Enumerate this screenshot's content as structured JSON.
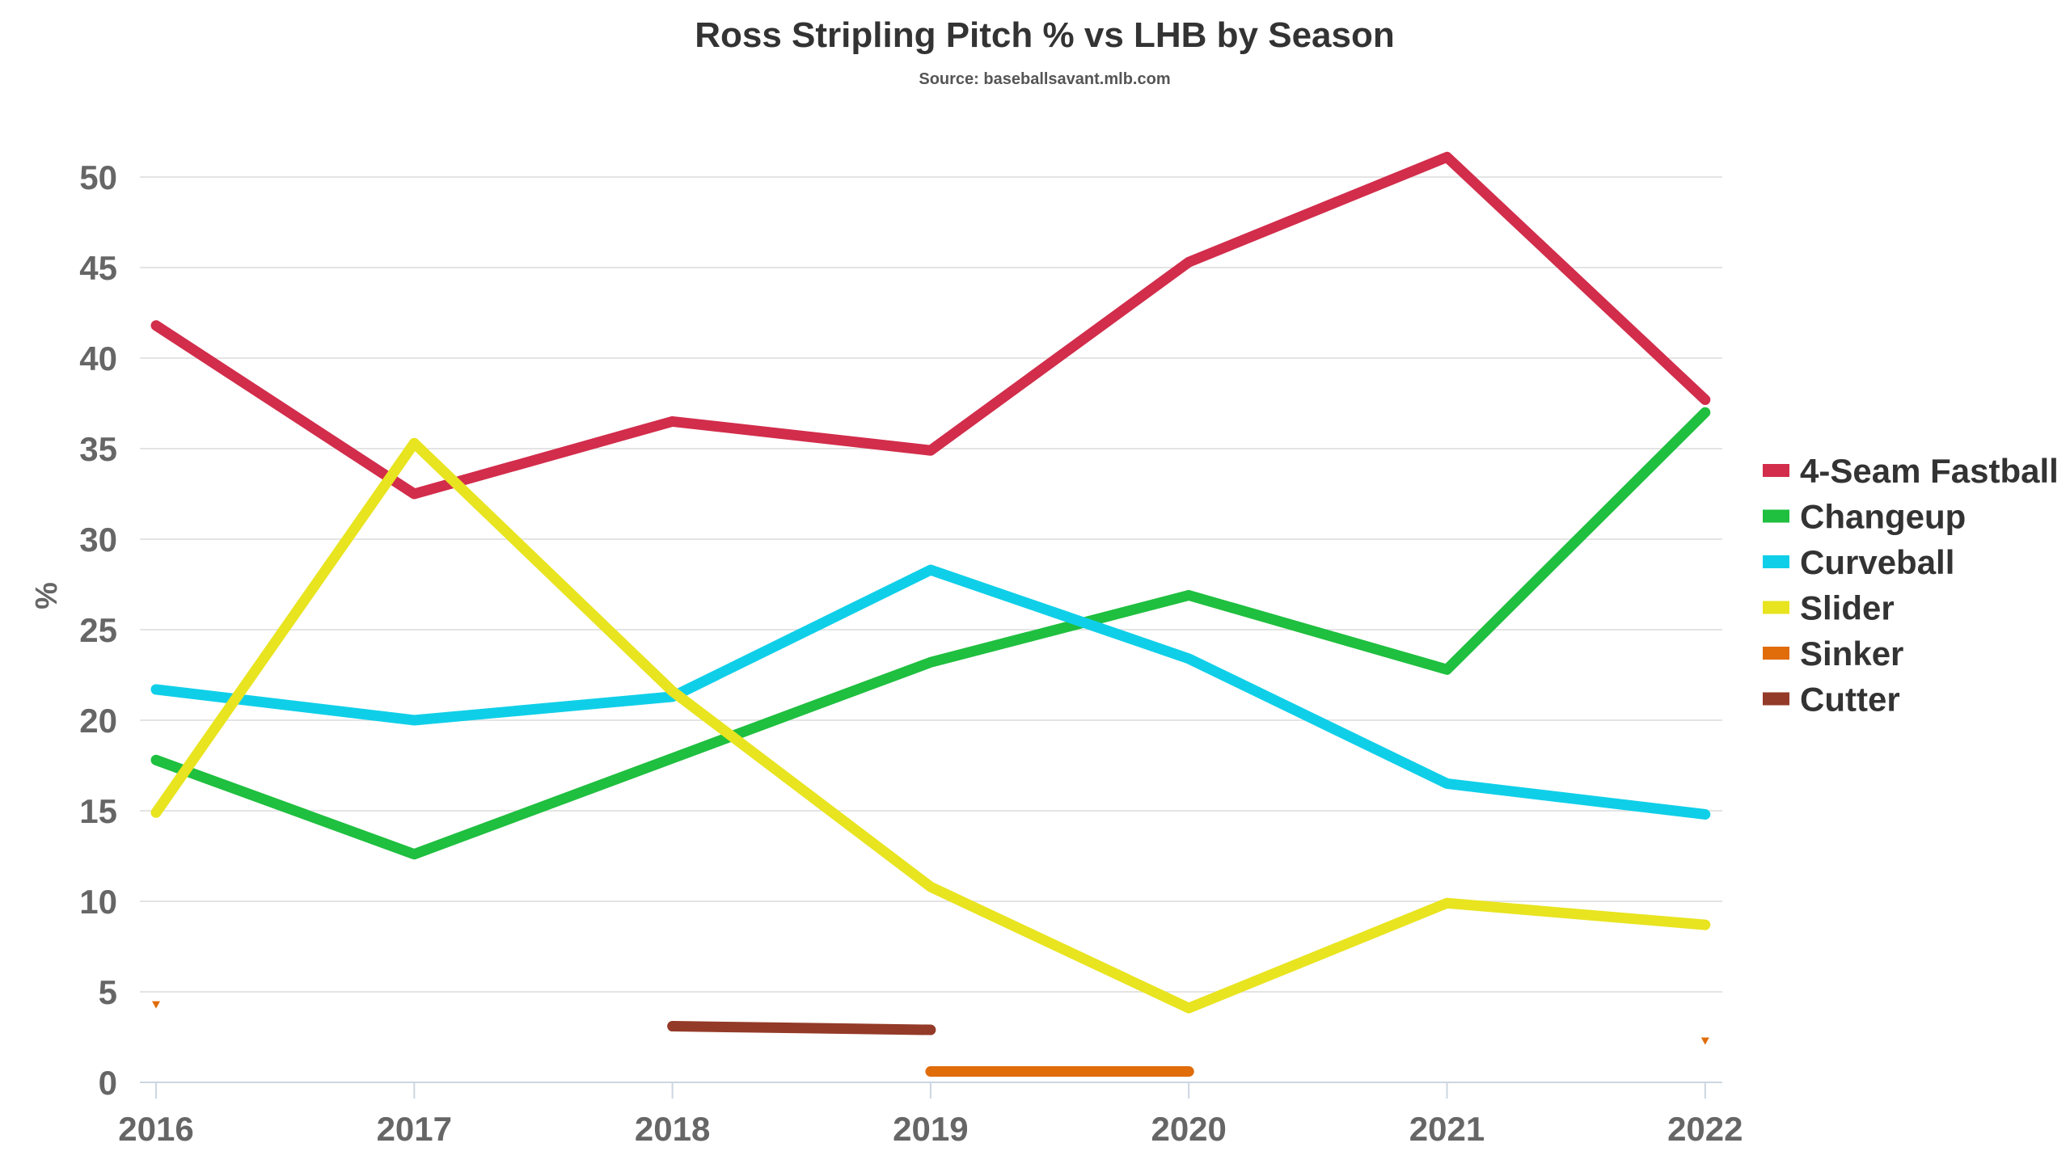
{
  "chart_data": {
    "type": "line",
    "title": "Ross Stripling Pitch % vs LHB by Season",
    "subtitle": "Source: baseballsavant.mlb.com",
    "xlabel": "",
    "ylabel": "%",
    "x": [
      "2016",
      "2017",
      "2018",
      "2019",
      "2020",
      "2021",
      "2022"
    ],
    "ylim": [
      0,
      52
    ],
    "yticks": [
      "0",
      "5",
      "10",
      "15",
      "20",
      "25",
      "30",
      "35",
      "40",
      "45",
      "50"
    ],
    "grid": true,
    "legend_position": "right",
    "series": [
      {
        "name": "4-Seam Fastball",
        "color": "#d22d4b",
        "values": [
          41.8,
          32.5,
          36.5,
          34.9,
          45.3,
          51.1,
          37.7
        ]
      },
      {
        "name": "Changeup",
        "color": "#1fbf3f",
        "values": [
          17.8,
          12.6,
          17.9,
          23.2,
          26.9,
          22.8,
          37.0
        ]
      },
      {
        "name": "Curveball",
        "color": "#0fcfe8",
        "values": [
          21.7,
          20.0,
          21.3,
          28.3,
          23.4,
          16.5,
          14.8
        ]
      },
      {
        "name": "Slider",
        "color": "#e8e41f",
        "values": [
          14.9,
          35.3,
          21.6,
          10.8,
          4.1,
          9.9,
          8.7
        ]
      },
      {
        "name": "Sinker",
        "color": "#e06c0a",
        "values": [
          4.3,
          null,
          null,
          0.6,
          0.6,
          null,
          2.3
        ]
      },
      {
        "name": "Cutter",
        "color": "#943a28",
        "values": [
          null,
          null,
          3.1,
          2.9,
          null,
          null,
          null
        ]
      }
    ]
  }
}
